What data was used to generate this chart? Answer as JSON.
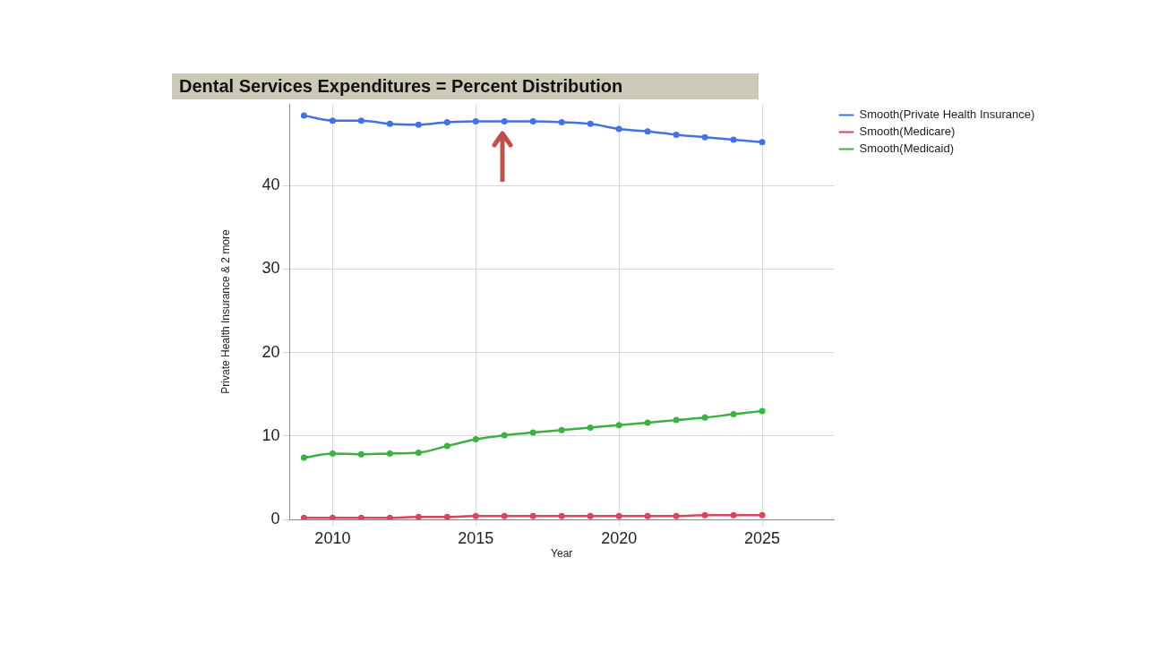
{
  "chart_data": {
    "type": "line",
    "title": "Dental Services Expenditures = Percent Distribution",
    "xlabel": "Year",
    "ylabel": "Private Health Insurance & 2 more",
    "x": [
      2009,
      2010,
      2011,
      2012,
      2013,
      2014,
      2015,
      2016,
      2017,
      2018,
      2019,
      2020,
      2021,
      2022,
      2023,
      2024,
      2025
    ],
    "series": [
      {
        "name": "Smooth(Private Health Insurance)",
        "color": "#4472e0",
        "values": [
          48.4,
          47.8,
          47.8,
          47.4,
          47.3,
          47.6,
          47.7,
          47.7,
          47.7,
          47.6,
          47.4,
          46.8,
          46.5,
          46.1,
          45.8,
          45.5,
          45.2
        ]
      },
      {
        "name": "Smooth(Medicare)",
        "color": "#d9465a",
        "values": [
          0.2,
          0.2,
          0.2,
          0.2,
          0.3,
          0.3,
          0.4,
          0.4,
          0.4,
          0.4,
          0.4,
          0.4,
          0.4,
          0.4,
          0.5,
          0.5,
          0.5
        ]
      },
      {
        "name": "Smooth(Medicaid)",
        "color": "#3cb043",
        "values": [
          7.4,
          7.9,
          7.8,
          7.9,
          8.0,
          8.8,
          9.6,
          10.1,
          10.4,
          10.7,
          11.0,
          11.3,
          11.6,
          11.9,
          12.2,
          12.6,
          13.0
        ]
      }
    ],
    "xlim": [
      2008.5,
      2027.5
    ],
    "xticks": [
      2010,
      2015,
      2020,
      2025
    ],
    "ylim": [
      0,
      49.8
    ],
    "yticks": [
      0,
      10,
      20,
      30,
      40
    ],
    "grid": true,
    "legend": "top right",
    "marker": "circle",
    "line_style": "solid"
  }
}
